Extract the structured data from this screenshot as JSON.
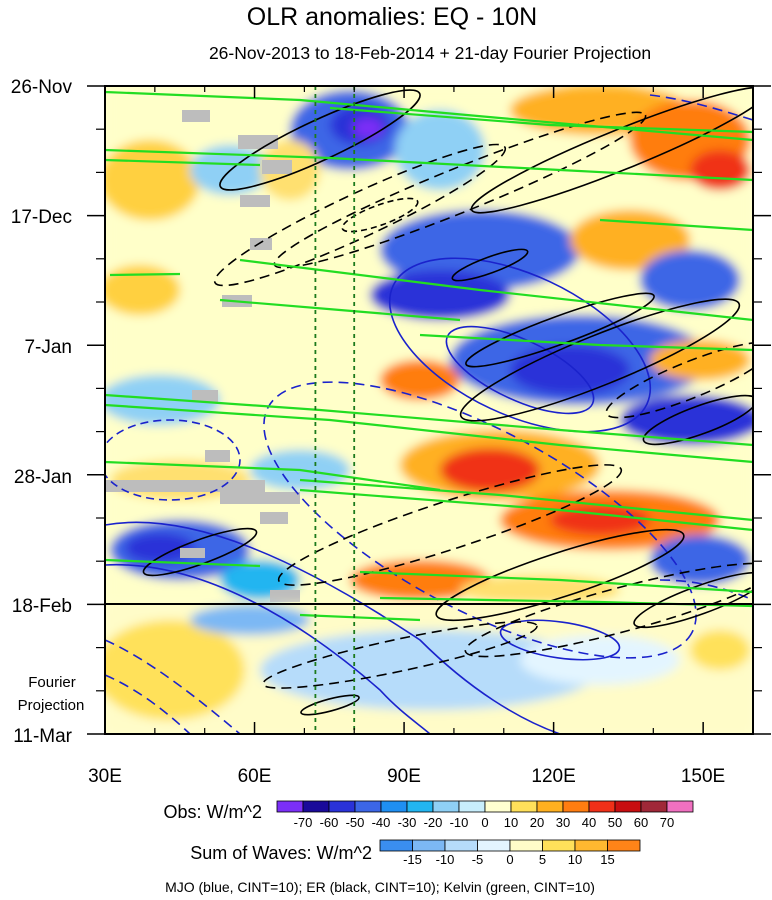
{
  "chart_data": {
    "type": "heatmap",
    "title": "OLR anomalies: EQ - 10N",
    "subtitle": "26-Nov-2013 to 18-Feb-2014 + 21-day Fourier Projection",
    "x_axis": {
      "range": [
        30,
        160
      ],
      "ticks": [
        30,
        60,
        90,
        120,
        150
      ],
      "tick_labels": [
        "30E",
        "60E",
        "90E",
        "120E",
        "150E"
      ]
    },
    "y_axis": {
      "range_days": [
        0,
        105
      ],
      "ticks": [
        0,
        21,
        42,
        63,
        84,
        105
      ],
      "tick_labels": [
        "26-Nov",
        "17-Dec",
        "7-Jan",
        "28-Jan",
        "18-Feb",
        "11-Mar"
      ]
    },
    "projection_label": [
      "Fourier",
      "Projection"
    ],
    "observation_end_day": 84,
    "reference_longitudes": [
      72,
      80
    ],
    "obs_colorbar": {
      "label": "Obs: W/m^2",
      "levels": [
        -70,
        -60,
        -50,
        -40,
        -30,
        -20,
        -10,
        0,
        10,
        20,
        30,
        40,
        50,
        60,
        70
      ],
      "colors": [
        "#7b2ff7",
        "#1a0a9a",
        "#2a32d8",
        "#3c66e6",
        "#1f8ff2",
        "#22b5f0",
        "#8fd0f5",
        "#c8eefc",
        "#ffffd0",
        "#ffe05a",
        "#ffb020",
        "#ff7d10",
        "#f03018",
        "#c80e10",
        "#a02838",
        "#f070c0"
      ]
    },
    "waves_colorbar": {
      "label": "Sum of Waves: W/m^2",
      "levels": [
        -15,
        -10,
        -5,
        0,
        5,
        10,
        15
      ],
      "colors": [
        "#3a8ef0",
        "#7cb8f4",
        "#b6dcfa",
        "#e3f5ff",
        "#fffcc8",
        "#ffe15a",
        "#ffb830",
        "#ff8418"
      ]
    },
    "legend_text": "MJO (blue, CINT=10); ER (black, CINT=10); Kelvin (green, CINT=10)",
    "series": [
      {
        "name": "MJO",
        "color": "#1a22cc"
      },
      {
        "name": "ER",
        "color": "#000000"
      },
      {
        "name": "Kelvin",
        "color": "#22dd22"
      }
    ]
  }
}
